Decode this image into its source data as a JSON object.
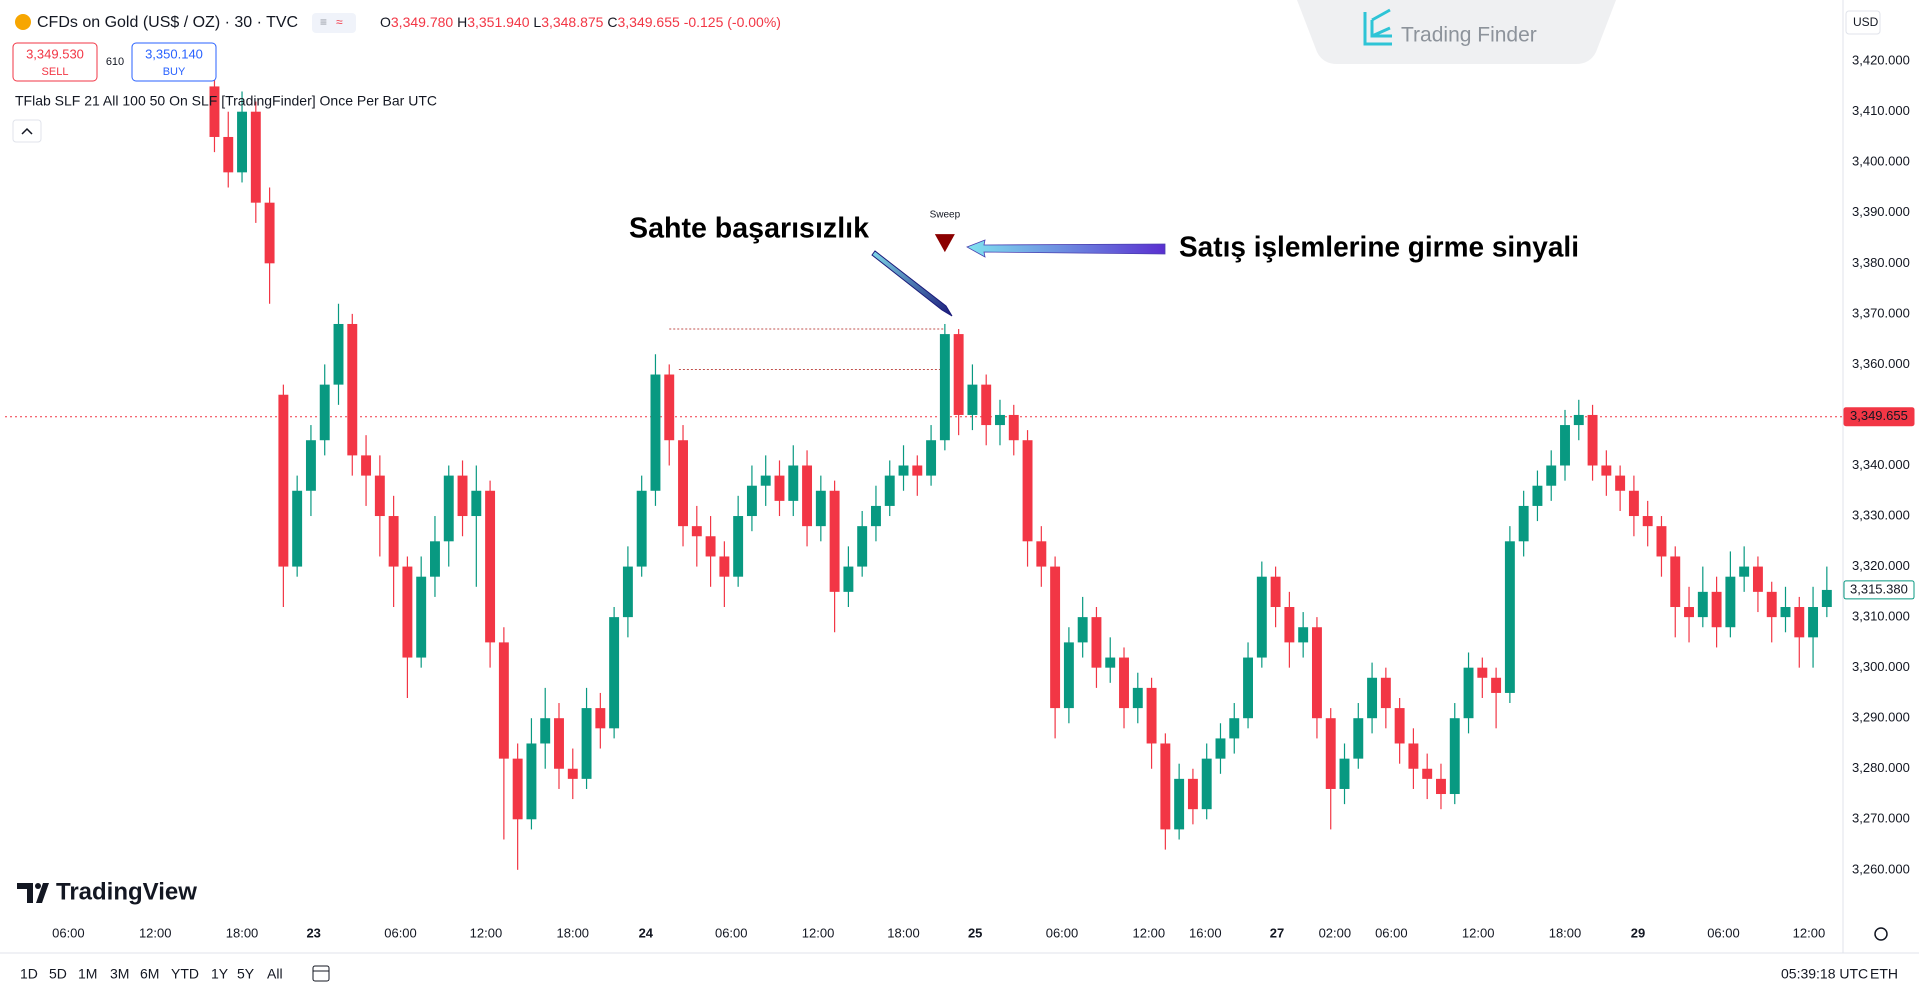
{
  "header": {
    "symbol": "CFDs on Gold (US$ / OZ) · 30 · TVC",
    "ohlc": [
      [
        "O",
        "3,349.780"
      ],
      [
        "H",
        "3,351.940"
      ],
      [
        "L",
        "3,348.875"
      ],
      [
        "C",
        "3,349.655"
      ]
    ],
    "change": "-0.125 (-0.00%)",
    "sell": {
      "price": "3,349.530",
      "label": "SELL"
    },
    "spread": "610",
    "buy": {
      "price": "3,350.140",
      "label": "BUY"
    },
    "indicator": "TFlab SLF 21 All 100 50 On SLF [TradingFinder] Once Per Bar UTC",
    "brand": "Trading Finder",
    "currency": "USD"
  },
  "chart_data": {
    "type": "candlestick",
    "colors": {
      "up": "#089981",
      "down": "#f23645"
    },
    "xlim": [
      -15.2,
      118.1
    ],
    "xticks": [
      {
        "value": -10.6,
        "label": "06:00"
      },
      {
        "value": -4.3,
        "label": "12:00"
      },
      {
        "value": 2.0,
        "label": "18:00"
      },
      {
        "value": 7.2,
        "label": "23"
      },
      {
        "value": 13.5,
        "label": "06:00"
      },
      {
        "value": 19.7,
        "label": "12:00"
      },
      {
        "value": 26.0,
        "label": "18:00"
      },
      {
        "value": 31.3,
        "label": "24"
      },
      {
        "value": 37.5,
        "label": "06:00"
      },
      {
        "value": 43.8,
        "label": "12:00"
      },
      {
        "value": 50.0,
        "label": "18:00"
      },
      {
        "value": 55.2,
        "label": "25"
      },
      {
        "value": 61.5,
        "label": "06:00"
      },
      {
        "value": 67.8,
        "label": "12:00"
      },
      {
        "value": 71.9,
        "label": "16:00"
      },
      {
        "value": 77.1,
        "label": "27"
      },
      {
        "value": 81.3,
        "label": "02:00"
      },
      {
        "value": 85.4,
        "label": "06:00"
      },
      {
        "value": 91.7,
        "label": "12:00"
      },
      {
        "value": 98.0,
        "label": "18:00"
      },
      {
        "value": 103.3,
        "label": "29"
      },
      {
        "value": 109.5,
        "label": "06:00"
      },
      {
        "value": 115.7,
        "label": "12:00"
      }
    ],
    "ylim": [
      3247.7,
      3432.1
    ],
    "yticks": [
      {
        "value": 3260,
        "label": "3,260.000"
      },
      {
        "value": 3270,
        "label": "3,270.000"
      },
      {
        "value": 3280,
        "label": "3,280.000"
      },
      {
        "value": 3290,
        "label": "3,290.000"
      },
      {
        "value": 3300,
        "label": "3,300.000"
      },
      {
        "value": 3310,
        "label": "3,310.000"
      },
      {
        "value": 3320,
        "label": "3,320.000"
      },
      {
        "value": 3330,
        "label": "3,330.000"
      },
      {
        "value": 3340,
        "label": "3,340.000"
      },
      {
        "value": 3350,
        "label": "3,350.000"
      },
      {
        "value": 3360,
        "label": "3,360.000"
      },
      {
        "value": 3370,
        "label": "3,370.000"
      },
      {
        "value": 3380,
        "label": "3,380.000"
      },
      {
        "value": 3390,
        "label": "3,390.000"
      },
      {
        "value": 3400,
        "label": "3,400.000"
      },
      {
        "value": 3410,
        "label": "3,410.000"
      },
      {
        "value": 3420,
        "label": "3,420.000"
      }
    ],
    "grid": false,
    "ohlc": [
      [
        3415,
        3418,
        3402,
        3405
      ],
      [
        3405,
        3410,
        3395,
        3398
      ],
      [
        3398,
        3414,
        3396,
        3410
      ],
      [
        3410,
        3412,
        3388,
        3392
      ],
      [
        3392,
        3395,
        3372,
        3380
      ],
      [
        3354,
        3356,
        3312,
        3320
      ],
      [
        3320,
        3338,
        3318,
        3335
      ],
      [
        3335,
        3348,
        3330,
        3345
      ],
      [
        3345,
        3360,
        3342,
        3356
      ],
      [
        3356,
        3372,
        3352,
        3368
      ],
      [
        3368,
        3370,
        3338,
        3342
      ],
      [
        3342,
        3346,
        3332,
        3338
      ],
      [
        3338,
        3342,
        3322,
        3330
      ],
      [
        3330,
        3334,
        3312,
        3320
      ],
      [
        3320,
        3322,
        3294,
        3302
      ],
      [
        3302,
        3322,
        3300,
        3318
      ],
      [
        3318,
        3330,
        3314,
        3325
      ],
      [
        3325,
        3340,
        3320,
        3338
      ],
      [
        3338,
        3341,
        3326,
        3330
      ],
      [
        3330,
        3340,
        3316,
        3335
      ],
      [
        3335,
        3337,
        3300,
        3305
      ],
      [
        3305,
        3308,
        3266,
        3282
      ],
      [
        3282,
        3285,
        3260,
        3270
      ],
      [
        3270,
        3290,
        3268,
        3285
      ],
      [
        3285,
        3296,
        3280,
        3290
      ],
      [
        3290,
        3293,
        3276,
        3280
      ],
      [
        3280,
        3284,
        3274,
        3278
      ],
      [
        3278,
        3296,
        3276,
        3292
      ],
      [
        3292,
        3295,
        3284,
        3288
      ],
      [
        3288,
        3312,
        3286,
        3310
      ],
      [
        3310,
        3324,
        3306,
        3320
      ],
      [
        3320,
        3338,
        3318,
        3335
      ],
      [
        3335,
        3362,
        3332,
        3358
      ],
      [
        3358,
        3360,
        3340,
        3345
      ],
      [
        3345,
        3348,
        3324,
        3328
      ],
      [
        3328,
        3332,
        3320,
        3326
      ],
      [
        3326,
        3330,
        3316,
        3322
      ],
      [
        3322,
        3325,
        3312,
        3318
      ],
      [
        3318,
        3334,
        3316,
        3330
      ],
      [
        3330,
        3340,
        3327,
        3336
      ],
      [
        3336,
        3342,
        3332,
        3338
      ],
      [
        3338,
        3341,
        3330,
        3333
      ],
      [
        3333,
        3344,
        3330,
        3340
      ],
      [
        3340,
        3343,
        3324,
        3328
      ],
      [
        3328,
        3338,
        3325,
        3335
      ],
      [
        3335,
        3337,
        3307,
        3315
      ],
      [
        3315,
        3324,
        3312,
        3320
      ],
      [
        3320,
        3331,
        3318,
        3328
      ],
      [
        3328,
        3336,
        3325,
        3332
      ],
      [
        3332,
        3341,
        3330,
        3338
      ],
      [
        3338,
        3344,
        3335,
        3340
      ],
      [
        3340,
        3342,
        3334,
        3338
      ],
      [
        3338,
        3348,
        3336,
        3345
      ],
      [
        3345,
        3368,
        3343,
        3366
      ],
      [
        3366,
        3367,
        3346,
        3350
      ],
      [
        3350,
        3360,
        3347,
        3356
      ],
      [
        3356,
        3358,
        3344,
        3348
      ],
      [
        3348,
        3353,
        3344,
        3350
      ],
      [
        3350,
        3352,
        3342,
        3345
      ],
      [
        3345,
        3347,
        3320,
        3325
      ],
      [
        3325,
        3328,
        3316,
        3320
      ],
      [
        3320,
        3322,
        3286,
        3292
      ],
      [
        3292,
        3308,
        3289,
        3305
      ],
      [
        3305,
        3314,
        3302,
        3310
      ],
      [
        3310,
        3312,
        3296,
        3300
      ],
      [
        3300,
        3306,
        3297,
        3302
      ],
      [
        3302,
        3304,
        3288,
        3292
      ],
      [
        3292,
        3299,
        3289,
        3296
      ],
      [
        3296,
        3298,
        3280,
        3285
      ],
      [
        3285,
        3287,
        3264,
        3268
      ],
      [
        3268,
        3281,
        3266,
        3278
      ],
      [
        3278,
        3280,
        3269,
        3272
      ],
      [
        3272,
        3285,
        3270,
        3282
      ],
      [
        3282,
        3289,
        3279,
        3286
      ],
      [
        3286,
        3293,
        3283,
        3290
      ],
      [
        3290,
        3305,
        3288,
        3302
      ],
      [
        3302,
        3321,
        3300,
        3318
      ],
      [
        3318,
        3320,
        3308,
        3312
      ],
      [
        3312,
        3315,
        3300,
        3305
      ],
      [
        3305,
        3311,
        3302,
        3308
      ],
      [
        3308,
        3310,
        3286,
        3290
      ],
      [
        3290,
        3292,
        3268,
        3276
      ],
      [
        3276,
        3285,
        3273,
        3282
      ],
      [
        3282,
        3293,
        3280,
        3290
      ],
      [
        3290,
        3301,
        3287,
        3298
      ],
      [
        3298,
        3300,
        3288,
        3292
      ],
      [
        3292,
        3294,
        3281,
        3285
      ],
      [
        3285,
        3288,
        3276,
        3280
      ],
      [
        3280,
        3283,
        3274,
        3278
      ],
      [
        3278,
        3281,
        3272,
        3275
      ],
      [
        3275,
        3293,
        3273,
        3290
      ],
      [
        3290,
        3303,
        3287,
        3300
      ],
      [
        3300,
        3302,
        3294,
        3298
      ],
      [
        3298,
        3300,
        3288,
        3295
      ],
      [
        3295,
        3328,
        3293,
        3325
      ],
      [
        3325,
        3335,
        3322,
        3332
      ],
      [
        3332,
        3339,
        3329,
        3336
      ],
      [
        3336,
        3343,
        3333,
        3340
      ],
      [
        3340,
        3351,
        3337,
        3348
      ],
      [
        3348,
        3353,
        3345,
        3350
      ],
      [
        3350,
        3352,
        3337,
        3340
      ],
      [
        3340,
        3343,
        3334,
        3338
      ],
      [
        3338,
        3340,
        3331,
        3335
      ],
      [
        3335,
        3338,
        3326,
        3330
      ],
      [
        3330,
        3333,
        3324,
        3328
      ],
      [
        3328,
        3330,
        3318,
        3322
      ],
      [
        3322,
        3324,
        3306,
        3312
      ],
      [
        3312,
        3316,
        3305,
        3310
      ],
      [
        3310,
        3320,
        3308,
        3315
      ],
      [
        3315,
        3318,
        3304,
        3308
      ],
      [
        3308,
        3323,
        3306,
        3318
      ],
      [
        3318,
        3324,
        3315,
        3320
      ],
      [
        3320,
        3322,
        3311,
        3315
      ],
      [
        3315,
        3317,
        3305,
        3310
      ],
      [
        3310,
        3316,
        3307,
        3312
      ],
      [
        3312,
        3314,
        3300,
        3306
      ],
      [
        3306,
        3316,
        3300,
        3312
      ],
      [
        3312,
        3320,
        3310,
        3315.38
      ]
    ],
    "price_lines": [
      {
        "value": 3349.655,
        "label": "3,349.655",
        "color": "#f23645",
        "line": true
      },
      {
        "value": 3315.38,
        "label": "3,315.380",
        "color": "#089981",
        "line": false
      }
    ],
    "sweep_lines": [
      {
        "y": 3367,
        "x": [
          33,
          53
        ]
      },
      {
        "y": 3359,
        "x": [
          33.7,
          53
        ]
      }
    ],
    "sweep_marker": {
      "x": 53,
      "y": 3384,
      "label": "Sweep",
      "color": "#8b0000"
    },
    "annotations": [
      "Sahte başarısızlık",
      "Satış işlemlerine girme sinyali"
    ]
  },
  "footer": {
    "logo": "TradingView",
    "ranges": [
      "1D",
      "5D",
      "1M",
      "3M",
      "6M",
      "YTD",
      "1Y",
      "5Y",
      "All"
    ],
    "clock": "05:39:18 UTC",
    "session": "ETH"
  }
}
